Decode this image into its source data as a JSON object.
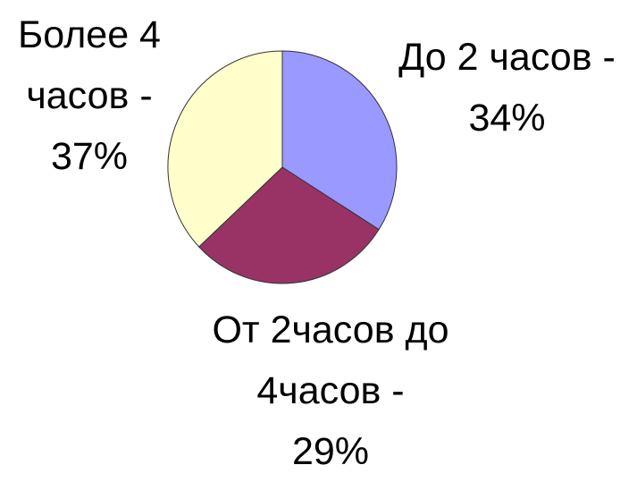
{
  "chart_data": {
    "type": "pie",
    "categories": [
      "До 2 часов -",
      "От 2часов до 4часов -",
      "Более 4 часов -"
    ],
    "values": [
      34,
      29,
      37
    ],
    "value_labels": [
      "34%",
      "29%",
      "37%"
    ],
    "colors": [
      "#9999ff",
      "#993366",
      "#ffffcc"
    ]
  }
}
